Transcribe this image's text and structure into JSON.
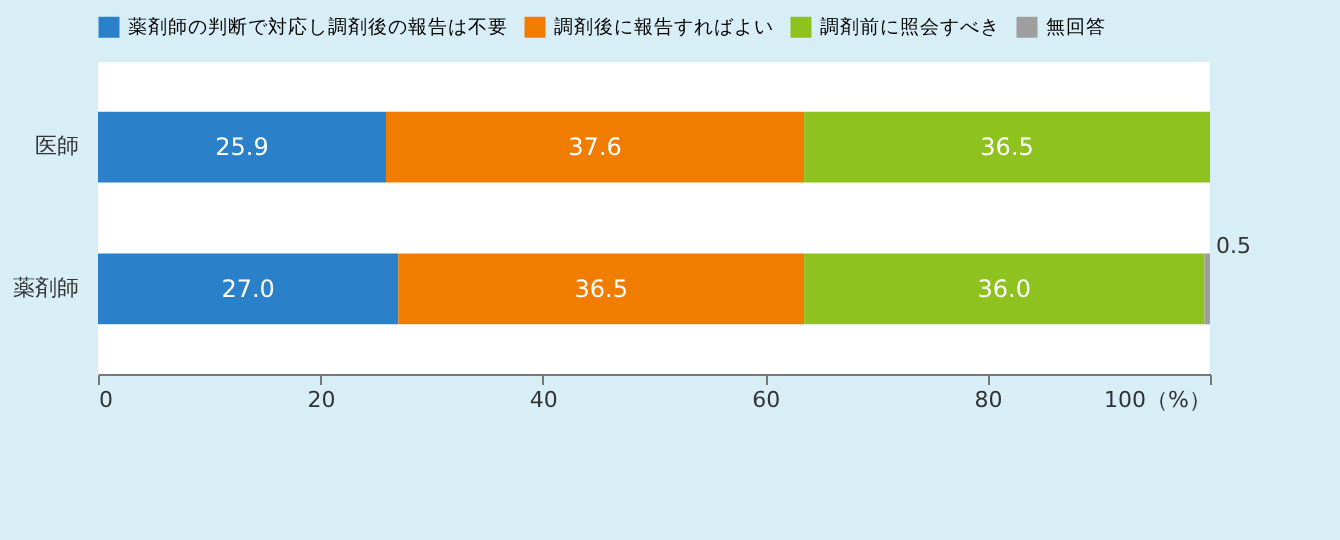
{
  "chart_data": {
    "type": "bar",
    "orientation": "horizontal",
    "stacked": true,
    "categories": [
      "医師",
      "薬剤師"
    ],
    "series": [
      {
        "name": "薬剤師の判断で対応し調剤後の報告は不要",
        "color": "#2a80c9",
        "values": [
          25.9,
          27.0
        ],
        "value_labels": [
          "25.9",
          "27.0"
        ]
      },
      {
        "name": "調剤後に報告すればよい",
        "color": "#f07d00",
        "values": [
          37.6,
          36.5
        ],
        "value_labels": [
          "37.6",
          "36.5"
        ]
      },
      {
        "name": "調剤前に照会すべき",
        "color": "#8dc21f",
        "values": [
          36.5,
          36.0
        ],
        "value_labels": [
          "36.5",
          "36.0"
        ]
      },
      {
        "name": "無回答",
        "color": "#9e9e9e",
        "values": [
          null,
          0.5
        ],
        "value_labels": [
          null,
          "0.5"
        ]
      }
    ],
    "xlim": [
      0,
      100
    ],
    "xticks": [
      0,
      20,
      40,
      60,
      80,
      {
        "value": 100,
        "label": "100（%）"
      }
    ],
    "legend": "top"
  }
}
